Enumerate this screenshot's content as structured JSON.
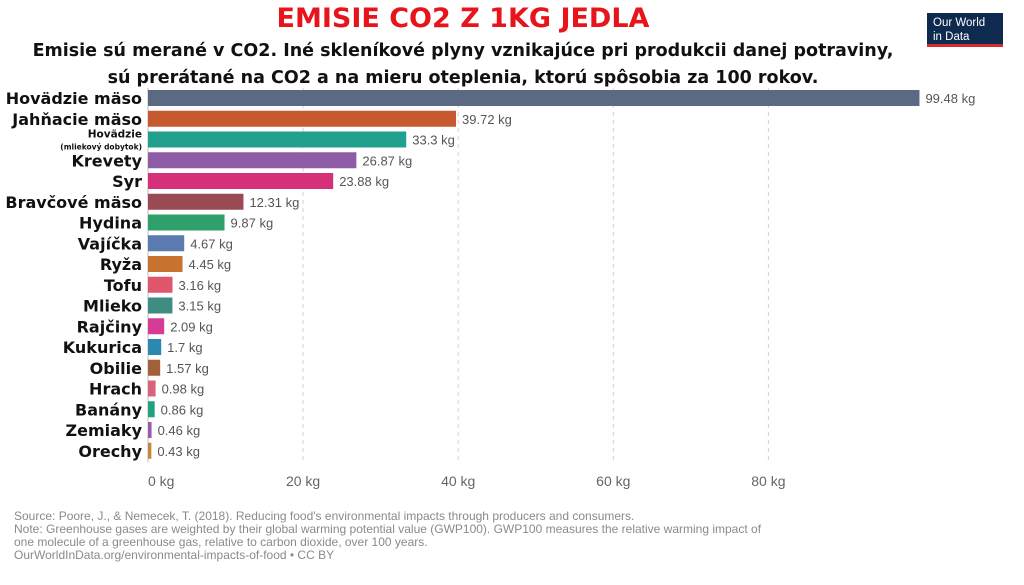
{
  "header": {
    "title": "EMISIE CO2 Z 1KG JEDLA",
    "subtitle_line1": "Emisie sú merané v CO2. Iné skleníkové plyny vznikajúce pri produkcii danej potraviny,",
    "subtitle_line2": "sú prerátané na CO2 a na mieru oteplenia, ktorú spôsobia za 100 rokov.",
    "logo_line1": "Our World",
    "logo_line2": "in Data"
  },
  "chart_data": {
    "type": "bar",
    "orientation": "horizontal",
    "title": "EMISIE CO2 Z 1KG JEDLA",
    "unit": "kg",
    "xlim": [
      0,
      100
    ],
    "xticks": [
      0,
      20,
      40,
      60,
      80
    ],
    "xtick_labels": [
      "0 kg",
      "20 kg",
      "40 kg",
      "60 kg",
      "80 kg"
    ],
    "grid": true,
    "categories": [
      {
        "label": "Hovädzie mäso",
        "value": 99.48,
        "value_label": "99.48 kg",
        "color": "#5b6a82"
      },
      {
        "label": "Jahňacie mäso",
        "value": 39.72,
        "value_label": "39.72 kg",
        "color": "#c65a2e"
      },
      {
        "label": "Hovädzie",
        "sublabel": "(mliekový dobytok)",
        "value": 33.3,
        "value_label": "33.3 kg",
        "color": "#22a08e"
      },
      {
        "label": "Krevety",
        "value": 26.87,
        "value_label": "26.87 kg",
        "color": "#8e5ca7"
      },
      {
        "label": "Syr",
        "value": 23.88,
        "value_label": "23.88 kg",
        "color": "#d6307a"
      },
      {
        "label": "Bravčové mäso",
        "value": 12.31,
        "value_label": "12.31 kg",
        "color": "#9a4a52"
      },
      {
        "label": "Hydina",
        "value": 9.87,
        "value_label": "9.87 kg",
        "color": "#2f9f6c"
      },
      {
        "label": "Vajíčka",
        "value": 4.67,
        "value_label": "4.67 kg",
        "color": "#5b7bb1"
      },
      {
        "label": "Ryža",
        "value": 4.45,
        "value_label": "4.45 kg",
        "color": "#c87230"
      },
      {
        "label": "Tofu",
        "value": 3.16,
        "value_label": "3.16 kg",
        "color": "#e0566c"
      },
      {
        "label": "Mlieko",
        "value": 3.15,
        "value_label": "3.15 kg",
        "color": "#3f8d82"
      },
      {
        "label": "Rajčiny",
        "value": 2.09,
        "value_label": "2.09 kg",
        "color": "#d63c95"
      },
      {
        "label": "Kukurica",
        "value": 1.7,
        "value_label": "1.7 kg",
        "color": "#2b88b0"
      },
      {
        "label": "Obilie",
        "value": 1.57,
        "value_label": "1.57 kg",
        "color": "#a2603a"
      },
      {
        "label": "Hrach",
        "value": 0.98,
        "value_label": "0.98 kg",
        "color": "#d7647a"
      },
      {
        "label": "Banány",
        "value": 0.86,
        "value_label": "0.86 kg",
        "color": "#23a07e"
      },
      {
        "label": "Zemiaky",
        "value": 0.46,
        "value_label": "0.46 kg",
        "color": "#9a5aa6"
      },
      {
        "label": "Orechy",
        "value": 0.43,
        "value_label": "0.43 kg",
        "color": "#c8843a"
      }
    ]
  },
  "footer": {
    "source": "Source: Poore, J., & Nemecek, T. (2018). Reducing food's environmental impacts through producers and consumers.",
    "note_line1": "Note: Greenhouse gases are weighted by their global warming potential value (GWP100). GWP100 measures the relative warming impact of",
    "note_line2": "one molecule of a greenhouse gas, relative to carbon dioxide, over 100 years.",
    "url": "OurWorldInData.org/environmental-impacts-of-food • CC BY"
  }
}
